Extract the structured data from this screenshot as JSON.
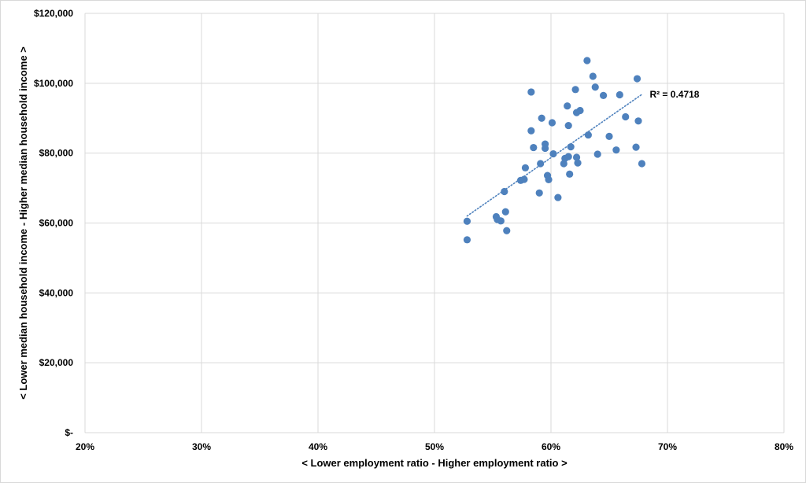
{
  "chart_data": {
    "type": "scatter",
    "title": "",
    "xlabel": "< Lower employment ratio - Higher employment ratio >",
    "ylabel": "< Lower median household income - Higher median household income >",
    "xlim": [
      0.2,
      0.8
    ],
    "ylim": [
      0,
      120000
    ],
    "x_ticks": [
      0.2,
      0.3,
      0.4,
      0.5,
      0.6,
      0.7,
      0.8
    ],
    "x_tick_labels": [
      "20%",
      "30%",
      "40%",
      "50%",
      "60%",
      "70%",
      "80%"
    ],
    "y_ticks": [
      0,
      20000,
      40000,
      60000,
      80000,
      100000,
      120000
    ],
    "y_tick_labels": [
      "$-",
      "$20,000",
      "$40,000",
      "$60,000",
      "$80,000",
      "$100,000",
      "$120,000"
    ],
    "grid": true,
    "legend": "none",
    "marker_color": "#4e81bd",
    "trendline": {
      "type": "linear",
      "x": [
        0.528,
        0.678
      ],
      "y": [
        62000,
        96800
      ],
      "color": "#4e81bd",
      "label": "R² = 0.4718"
    },
    "points": [
      {
        "x": 0.528,
        "y": 60500
      },
      {
        "x": 0.528,
        "y": 55200
      },
      {
        "x": 0.553,
        "y": 61800
      },
      {
        "x": 0.554,
        "y": 61000
      },
      {
        "x": 0.557,
        "y": 60600
      },
      {
        "x": 0.56,
        "y": 69000
      },
      {
        "x": 0.561,
        "y": 63200
      },
      {
        "x": 0.562,
        "y": 57800
      },
      {
        "x": 0.574,
        "y": 72200
      },
      {
        "x": 0.577,
        "y": 72500
      },
      {
        "x": 0.578,
        "y": 75800
      },
      {
        "x": 0.583,
        "y": 97500
      },
      {
        "x": 0.583,
        "y": 86400
      },
      {
        "x": 0.585,
        "y": 81600
      },
      {
        "x": 0.59,
        "y": 68600
      },
      {
        "x": 0.591,
        "y": 77000
      },
      {
        "x": 0.592,
        "y": 90000
      },
      {
        "x": 0.595,
        "y": 82600
      },
      {
        "x": 0.595,
        "y": 81400
      },
      {
        "x": 0.597,
        "y": 73600
      },
      {
        "x": 0.598,
        "y": 72400
      },
      {
        "x": 0.601,
        "y": 88700
      },
      {
        "x": 0.602,
        "y": 79800
      },
      {
        "x": 0.606,
        "y": 67300
      },
      {
        "x": 0.611,
        "y": 77000
      },
      {
        "x": 0.612,
        "y": 78500
      },
      {
        "x": 0.614,
        "y": 93500
      },
      {
        "x": 0.615,
        "y": 87900
      },
      {
        "x": 0.615,
        "y": 79000
      },
      {
        "x": 0.616,
        "y": 74000
      },
      {
        "x": 0.617,
        "y": 81800
      },
      {
        "x": 0.621,
        "y": 98200
      },
      {
        "x": 0.622,
        "y": 91600
      },
      {
        "x": 0.622,
        "y": 78800
      },
      {
        "x": 0.623,
        "y": 77200
      },
      {
        "x": 0.625,
        "y": 92200
      },
      {
        "x": 0.631,
        "y": 106500
      },
      {
        "x": 0.632,
        "y": 85200
      },
      {
        "x": 0.636,
        "y": 102000
      },
      {
        "x": 0.638,
        "y": 98900
      },
      {
        "x": 0.64,
        "y": 79700
      },
      {
        "x": 0.645,
        "y": 96500
      },
      {
        "x": 0.65,
        "y": 84800
      },
      {
        "x": 0.656,
        "y": 80900
      },
      {
        "x": 0.659,
        "y": 96700
      },
      {
        "x": 0.664,
        "y": 90400
      },
      {
        "x": 0.673,
        "y": 81700
      },
      {
        "x": 0.674,
        "y": 101300
      },
      {
        "x": 0.675,
        "y": 89200
      },
      {
        "x": 0.678,
        "y": 77000
      }
    ]
  }
}
